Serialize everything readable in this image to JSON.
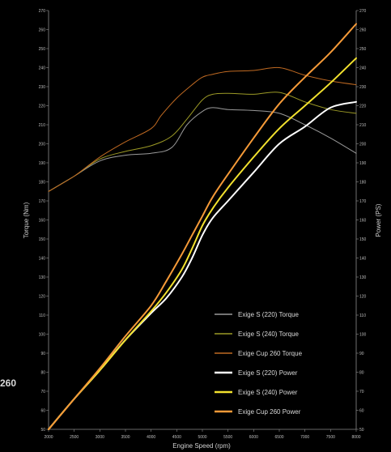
{
  "side_label": "260",
  "chart_data": {
    "type": "line",
    "xlabel": "Engine Speed (rpm)",
    "ylabel_left": "Torque (Nm)",
    "ylabel_right": "Power (PS)",
    "xlim": [
      2000,
      8000
    ],
    "ylim_left": [
      50,
      270
    ],
    "ylim_right": [
      50,
      270
    ],
    "x_ticks": [
      2000,
      2500,
      3000,
      3500,
      4000,
      4500,
      5000,
      5500,
      6000,
      6500,
      7000,
      7500,
      8000
    ],
    "y_ticks": [
      50,
      60,
      70,
      80,
      90,
      100,
      110,
      120,
      130,
      140,
      150,
      160,
      170,
      180,
      190,
      200,
      210,
      220,
      230,
      240,
      250,
      260,
      270
    ],
    "grid": false,
    "legend_position": "bottom-right",
    "series": [
      {
        "name": "Exige S (220) Torque",
        "axis": "left",
        "color": "#9a9a9a",
        "width": 1,
        "x": [
          2000,
          2500,
          3000,
          3500,
          4000,
          4400,
          4700,
          5000,
          5200,
          5500,
          6000,
          6500,
          7000,
          7500,
          8000
        ],
        "y": [
          175,
          183,
          191,
          194,
          195,
          198,
          210,
          217,
          219,
          218,
          217.5,
          216,
          210,
          203,
          195
        ]
      },
      {
        "name": "Exige S (240) Torque",
        "axis": "left",
        "color": "#9c9a26",
        "width": 1,
        "x": [
          2000,
          2500,
          3000,
          3500,
          4000,
          4400,
          4700,
          5000,
          5200,
          5500,
          6000,
          6500,
          7000,
          7500,
          8000
        ],
        "y": [
          175,
          183,
          192,
          196,
          199,
          204,
          213,
          223,
          226,
          226.5,
          226,
          227,
          222,
          218,
          216
        ]
      },
      {
        "name": "Exige Cup 260 Torque",
        "axis": "left",
        "color": "#c06a22",
        "width": 1,
        "x": [
          2000,
          2500,
          3000,
          3500,
          4000,
          4200,
          4500,
          4800,
          5000,
          5200,
          5500,
          6000,
          6500,
          7000,
          7500,
          8000
        ],
        "y": [
          175,
          183,
          193,
          201,
          208,
          215,
          224,
          231,
          235,
          236.5,
          238,
          238.5,
          240,
          236,
          233,
          231
        ]
      },
      {
        "name": "Exige S (220) Power",
        "axis": "right",
        "color": "#ffffff",
        "width": 2,
        "x": [
          2000,
          2500,
          3000,
          3500,
          4000,
          4300,
          4600,
          4800,
          5000,
          5200,
          5500,
          6000,
          6500,
          7000,
          7500,
          8000
        ],
        "y": [
          50,
          66,
          81,
          97,
          111,
          119,
          130,
          140,
          152,
          161,
          170,
          185,
          200,
          209,
          219,
          222
        ]
      },
      {
        "name": "Exige S (240) Power",
        "axis": "right",
        "color": "#f2e12e",
        "width": 2,
        "x": [
          2000,
          2500,
          3000,
          3500,
          4000,
          4300,
          4600,
          4800,
          5000,
          5200,
          5500,
          6000,
          6500,
          7000,
          7500,
          8000
        ],
        "y": [
          50,
          66,
          81,
          97,
          112,
          122,
          134,
          145,
          157,
          166,
          177,
          193,
          208,
          220,
          232,
          245
        ]
      },
      {
        "name": "Exige Cup 260 Power",
        "axis": "right",
        "color": "#f59a38",
        "width": 2,
        "x": [
          2000,
          2500,
          3000,
          3500,
          4000,
          4300,
          4600,
          4800,
          5000,
          5200,
          5500,
          6000,
          6500,
          7000,
          7500,
          8000
        ],
        "y": [
          50,
          66,
          82,
          99,
          115,
          128,
          142,
          152,
          162,
          172,
          184,
          203,
          221,
          235,
          248,
          263
        ]
      }
    ]
  }
}
